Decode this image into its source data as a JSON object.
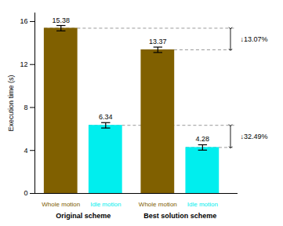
{
  "chart_data": {
    "type": "bar",
    "categories": [
      "Original scheme",
      "Best solution scheme"
    ],
    "series": [
      {
        "name": "Whole motion",
        "color": "#806000",
        "values": [
          15.38,
          13.37
        ],
        "errors": [
          0.25,
          0.25
        ]
      },
      {
        "name": "Idle motion",
        "color": "#00EEEE",
        "values": [
          6.34,
          4.28
        ],
        "errors": [
          0.25,
          0.25
        ]
      }
    ],
    "ylabel": "Execution time (s)",
    "ylim": [
      0,
      16.8
    ],
    "yticks": [
      0,
      4,
      8,
      12,
      16
    ],
    "data_labels": true,
    "annotations": [
      {
        "text": "↓13.07%",
        "y1": 15.38,
        "y2": 13.37
      },
      {
        "text": "↓32.49%",
        "y1": 6.34,
        "y2": 4.28
      }
    ]
  }
}
